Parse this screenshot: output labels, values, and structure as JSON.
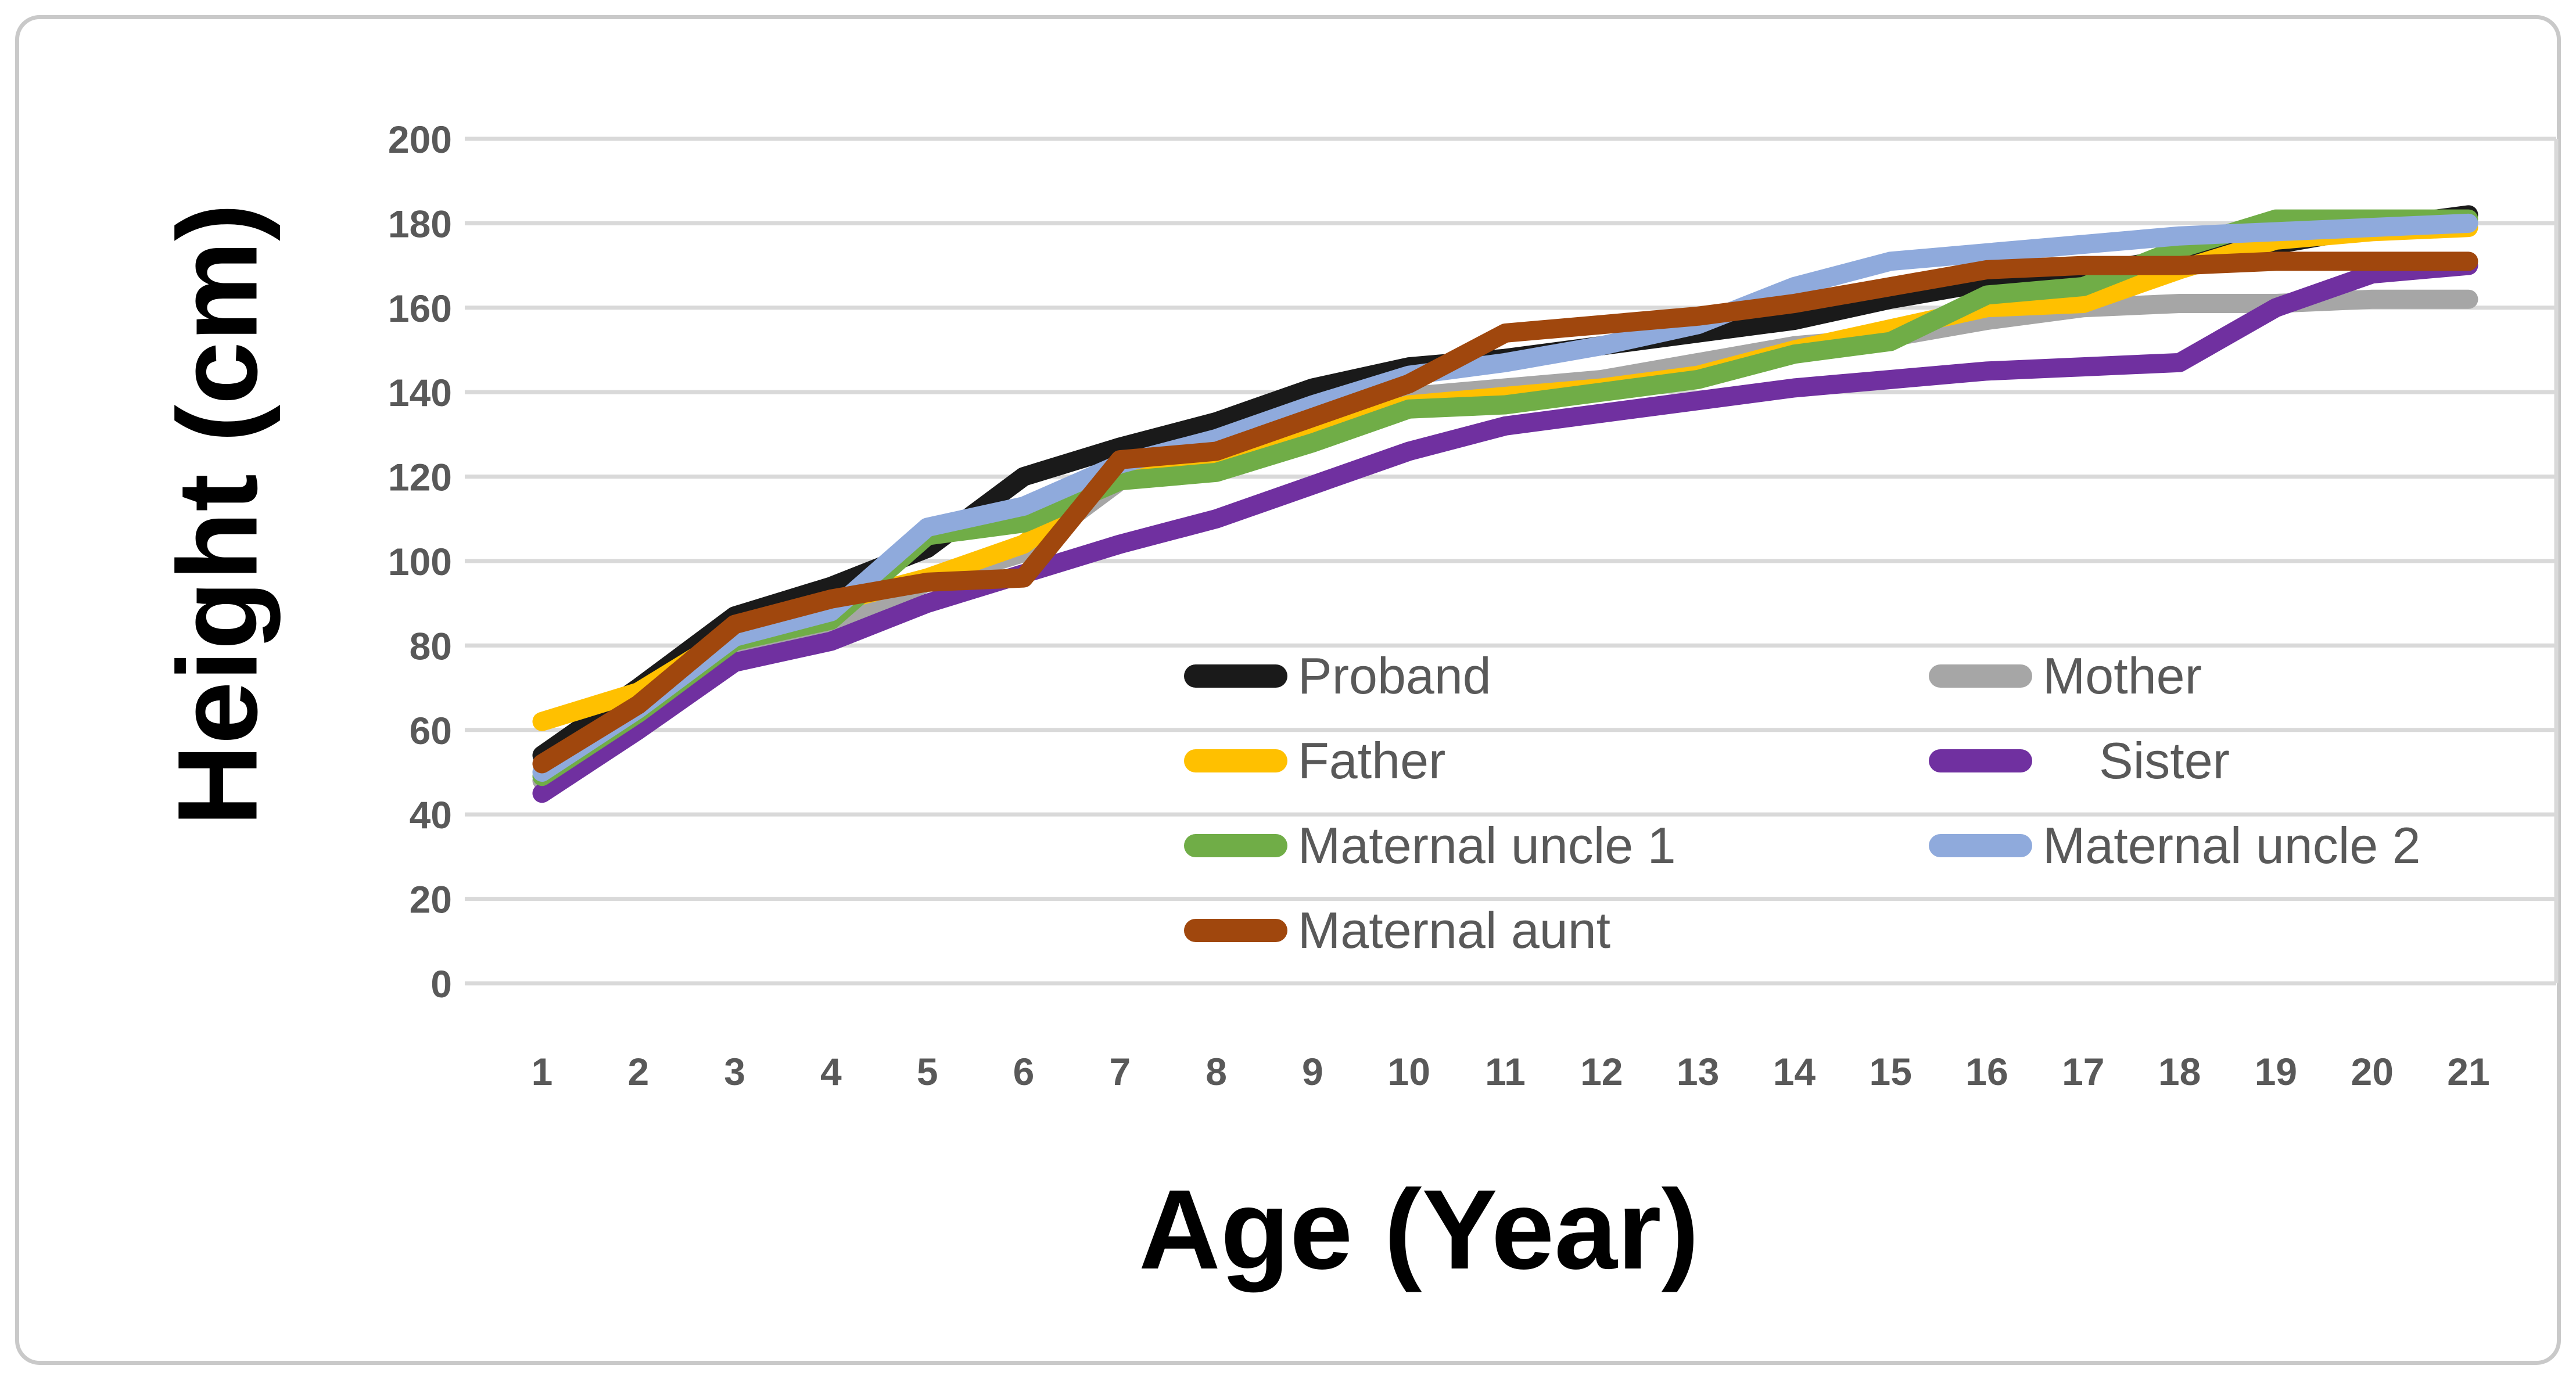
{
  "chart_data": {
    "type": "line",
    "title": "",
    "xlabel": "Age (Year)",
    "ylabel": "Height (cm)",
    "x": [
      1,
      2,
      3,
      4,
      5,
      6,
      7,
      8,
      9,
      10,
      11,
      12,
      13,
      14,
      15,
      16,
      17,
      18,
      19,
      20,
      21
    ],
    "ylim": [
      0,
      200
    ],
    "yticks": [
      0,
      20,
      40,
      60,
      80,
      100,
      120,
      140,
      160,
      180,
      200
    ],
    "grid": true,
    "legend_position": "inside lower-center, two columns",
    "series": [
      {
        "name": "Proband",
        "color": "#1a1a1a",
        "values": [
          54,
          70,
          87,
          94,
          103,
          120,
          127,
          133,
          141,
          146,
          148,
          151,
          154,
          157,
          162,
          166,
          168,
          172,
          175,
          179,
          182
        ]
      },
      {
        "name": "Mother",
        "color": "#a6a6a6",
        "values": [
          48,
          64,
          80,
          85,
          95,
          102,
          119,
          123,
          130,
          139,
          141,
          143,
          147,
          151,
          153,
          157,
          160,
          161,
          161,
          162,
          162
        ]
      },
      {
        "name": "Father",
        "color": "#ffc000",
        "values": [
          62,
          69,
          83,
          90,
          96,
          104,
          121,
          124,
          131,
          137,
          139,
          141,
          144,
          150,
          155,
          160,
          161,
          169,
          176,
          178,
          179
        ]
      },
      {
        "name": "Sister",
        "color": "#7030a0",
        "values": [
          45,
          60,
          76,
          81,
          90,
          97,
          104,
          110,
          118,
          126,
          132,
          135,
          138,
          141,
          143,
          145,
          146,
          147,
          160,
          168,
          170
        ]
      },
      {
        "name": "Maternal uncle 1",
        "color": "#70ad47",
        "values": [
          49,
          64,
          81,
          86,
          106,
          109,
          119,
          121,
          128,
          136,
          137,
          140,
          143,
          149,
          152,
          163,
          165,
          174,
          181,
          181,
          181
        ]
      },
      {
        "name": "Maternal uncle 2",
        "color": "#8faadc",
        "values": [
          50,
          65,
          82,
          88,
          108,
          113,
          123,
          129,
          137,
          144,
          147,
          151,
          156,
          165,
          171,
          173,
          175,
          177,
          178,
          179,
          180
        ]
      },
      {
        "name": "Maternal aunt",
        "color": "#a0470d",
        "values": [
          52,
          66,
          85,
          91,
          95,
          96,
          124,
          126,
          134,
          142,
          154,
          156,
          158,
          161,
          165,
          169,
          170,
          170,
          171,
          171,
          171
        ]
      }
    ],
    "legend_columns": {
      "left": [
        "Proband",
        "Father",
        "Maternal uncle 1",
        "Maternal aunt"
      ],
      "right": [
        "Mother",
        "Sister",
        "Maternal uncle 2"
      ]
    },
    "legend_indented_labels": [
      "Sister"
    ]
  },
  "styles": {
    "grid_color": "#d9d9d9",
    "tick_text_color": "#595959",
    "legend_text_color": "#595959",
    "plot_right_border_color": "#d9d9d9"
  }
}
